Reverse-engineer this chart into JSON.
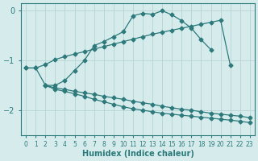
{
  "background_color": "#d6ecec",
  "grid_color": "#b8d4d4",
  "line_color": "#2d7a7a",
  "xlabel": "Humidex (Indice chaleur)",
  "ylim": [
    -2.5,
    0.15
  ],
  "xlim": [
    -0.5,
    23.5
  ],
  "yticks": [
    0,
    -1,
    -2
  ],
  "xtick_labels": [
    "0",
    "1",
    "2",
    "3",
    "4",
    "5",
    "6",
    "7",
    "8",
    "9",
    "10",
    "11",
    "12",
    "13",
    "14",
    "15",
    "16",
    "17",
    "18",
    "19",
    "20",
    "21",
    "22",
    "23"
  ],
  "line_top_x": [
    0,
    1,
    2,
    3,
    4,
    5,
    6,
    7,
    8,
    9,
    10,
    11,
    12,
    13,
    14,
    15,
    16,
    17,
    18,
    19
  ],
  "line_top_y": [
    -1.15,
    -1.15,
    -1.5,
    -1.5,
    -1.4,
    -1.2,
    -1.0,
    -0.7,
    -0.62,
    -0.52,
    -0.42,
    -0.1,
    -0.05,
    -0.07,
    0.0,
    -0.08,
    -0.2,
    -0.35,
    -0.58,
    -0.78
  ],
  "line_upper_x": [
    0,
    1,
    2,
    3,
    4,
    5,
    6,
    7,
    8,
    9,
    10,
    11,
    12,
    13,
    14,
    15,
    16,
    17,
    18,
    19,
    20,
    21
  ],
  "line_upper_y": [
    -1.15,
    -1.15,
    -1.08,
    -0.98,
    -0.92,
    -0.87,
    -0.82,
    -0.77,
    -0.72,
    -0.67,
    -0.62,
    -0.57,
    -0.52,
    -0.47,
    -0.43,
    -0.39,
    -0.35,
    -0.31,
    -0.27,
    -0.23,
    -0.19,
    -1.1
  ],
  "line_lower_x": [
    2,
    3,
    4,
    5,
    6,
    7,
    8,
    9,
    10,
    11,
    12,
    13,
    14,
    15,
    16,
    17,
    18,
    19,
    20,
    21,
    22,
    23
  ],
  "line_lower_y": [
    -1.5,
    -1.55,
    -1.58,
    -1.62,
    -1.65,
    -1.68,
    -1.72,
    -1.75,
    -1.78,
    -1.82,
    -1.85,
    -1.88,
    -1.92,
    -1.95,
    -1.98,
    -2.0,
    -2.03,
    -2.06,
    -2.08,
    -2.1,
    -2.12,
    -2.15
  ],
  "line_bottom_x": [
    2,
    3,
    4,
    5,
    6,
    7,
    8,
    9,
    10,
    11,
    12,
    13,
    14,
    15,
    16,
    17,
    18,
    19,
    20,
    21,
    22,
    23
  ],
  "line_bottom_y": [
    -1.5,
    -1.58,
    -1.62,
    -1.67,
    -1.72,
    -1.78,
    -1.83,
    -1.88,
    -1.93,
    -1.97,
    -2.0,
    -2.03,
    -2.06,
    -2.08,
    -2.1,
    -2.12,
    -2.14,
    -2.16,
    -2.18,
    -2.2,
    -2.22,
    -2.25
  ]
}
